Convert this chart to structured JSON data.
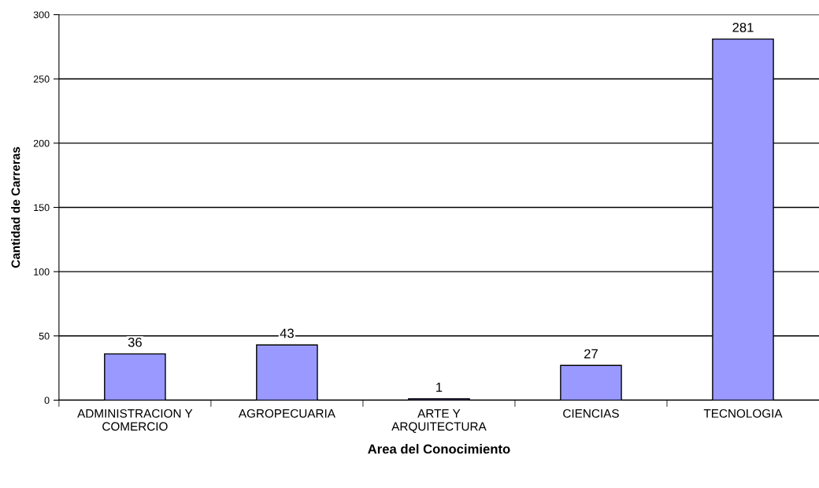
{
  "chart_data": {
    "type": "bar",
    "xlabel": "Area del Conocimiento",
    "ylabel": "Cantidad de Carreras",
    "categories": [
      "ADMINISTRACION Y\nCOMERCIO",
      "AGROPECUARIA",
      "ARTE Y\nARQUITECTURA",
      "CIENCIAS",
      "TECNOLOGIA"
    ],
    "values": [
      36,
      43,
      1,
      27,
      281
    ],
    "color": "#9999ff",
    "ylim": [
      0,
      300
    ],
    "yticks": [
      0,
      50,
      100,
      150,
      200,
      250,
      300
    ],
    "grid": "y",
    "data_labels": true,
    "legend": false
  }
}
